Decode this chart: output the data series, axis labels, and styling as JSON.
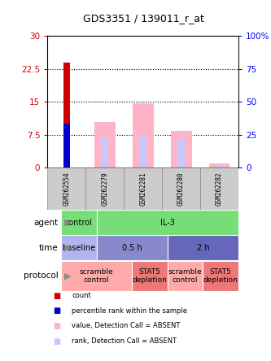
{
  "title": "GDS3351 / 139011_r_at",
  "samples": [
    "GSM262554",
    "GSM262279",
    "GSM262281",
    "GSM262280",
    "GSM262282"
  ],
  "count_values": [
    24.0,
    0,
    0,
    0,
    0
  ],
  "percentile_values": [
    10.0,
    0,
    0,
    0,
    0
  ],
  "absent_value_values": [
    0,
    10.5,
    14.8,
    8.5,
    1.1
  ],
  "absent_rank_values": [
    0,
    7.0,
    7.5,
    6.5,
    0.4
  ],
  "ylim": [
    0,
    30
  ],
  "y2lim": [
    0,
    100
  ],
  "yticks": [
    0,
    7.5,
    15,
    22.5,
    30
  ],
  "ytick_labels": [
    "0",
    "7.5",
    "15",
    "22.5",
    "30"
  ],
  "y2ticks": [
    0,
    25,
    50,
    75,
    100
  ],
  "y2tick_labels": [
    "0",
    "25",
    "50",
    "75",
    "100%"
  ],
  "agent_row": {
    "cells": [
      {
        "label": "control",
        "span": 1,
        "color": "#77dd77"
      },
      {
        "label": "IL-3",
        "span": 4,
        "color": "#77dd77"
      }
    ]
  },
  "time_row": {
    "cells": [
      {
        "label": "baseline",
        "span": 1,
        "color": "#b3b3ee"
      },
      {
        "label": "0.5 h",
        "span": 2,
        "color": "#8888cc"
      },
      {
        "label": "2 h",
        "span": 2,
        "color": "#6666bb"
      }
    ]
  },
  "protocol_row": {
    "cells": [
      {
        "label": "scramble\ncontrol",
        "span": 2,
        "color": "#ffaaaa"
      },
      {
        "label": "STAT5\ndepletion",
        "span": 1,
        "color": "#ee7777"
      },
      {
        "label": "scramble\ncontrol",
        "span": 1,
        "color": "#ffaaaa"
      },
      {
        "label": "STAT5\ndepletion",
        "span": 1,
        "color": "#ee7777"
      }
    ]
  },
  "legend_items": [
    {
      "color": "#cc0000",
      "label": "count"
    },
    {
      "color": "#0000cc",
      "label": "percentile rank within the sample"
    },
    {
      "color": "#ffb3c1",
      "label": "value, Detection Call = ABSENT"
    },
    {
      "color": "#c8c8ff",
      "label": "rank, Detection Call = ABSENT"
    }
  ]
}
